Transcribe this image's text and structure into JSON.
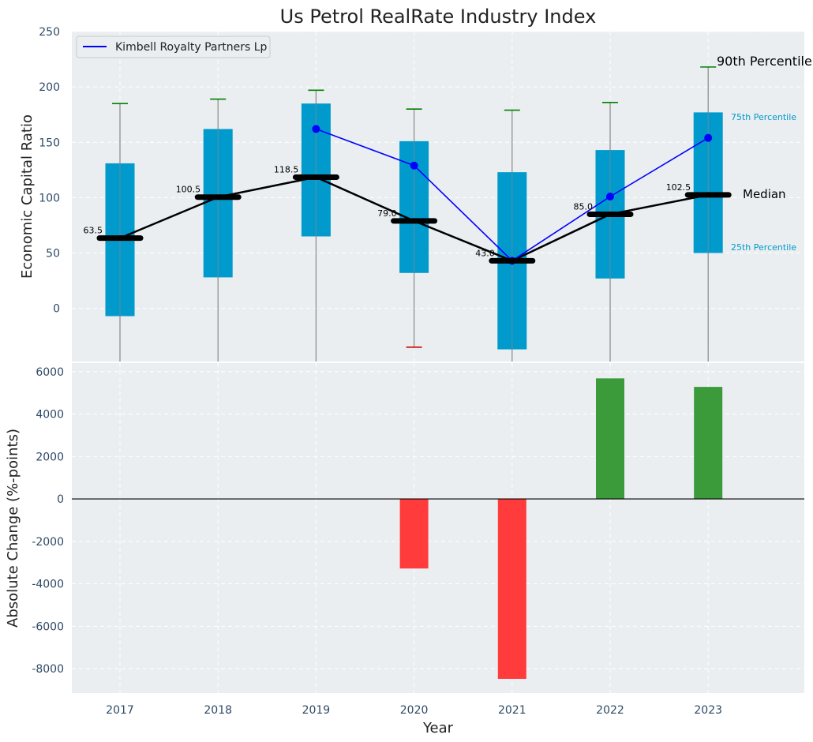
{
  "chart_data": [
    {
      "type": "box",
      "title": "Us Petrol RealRate Industry Index",
      "ylabel": "Economic Capital Ratio",
      "ylim": [
        -48,
        250
      ],
      "yticks": [
        0,
        50,
        100,
        150,
        200,
        250
      ],
      "categories": [
        "2017",
        "2018",
        "2019",
        "2020",
        "2021",
        "2022",
        "2023"
      ],
      "boxes": [
        {
          "year": "2017",
          "p10": -48,
          "p25": -7,
          "median": 63.5,
          "p75": 131,
          "p90": 185,
          "median_label": "63.5"
        },
        {
          "year": "2018",
          "p10": -48,
          "p25": 28,
          "median": 100.5,
          "p75": 162,
          "p90": 189,
          "median_label": "100.5"
        },
        {
          "year": "2019",
          "p10": -48,
          "p25": 65,
          "median": 118.5,
          "p75": 185,
          "p90": 197,
          "median_label": "118.5"
        },
        {
          "year": "2020",
          "p10": -35,
          "p25": 32,
          "median": 79.0,
          "p75": 151,
          "p90": 180,
          "median_label": "79.0"
        },
        {
          "year": "2021",
          "p10": -48,
          "p25": -37,
          "median": 43.0,
          "p75": 123,
          "p90": 179,
          "median_label": "43.0"
        },
        {
          "year": "2022",
          "p10": -48,
          "p25": 27,
          "median": 85.0,
          "p75": 143,
          "p90": 186,
          "median_label": "85.0"
        },
        {
          "year": "2023",
          "p10": -48,
          "p25": 50,
          "median": 102.5,
          "p75": 177,
          "p90": 218,
          "median_label": "102.5"
        }
      ],
      "series": [
        {
          "name": "Kimbell Royalty Partners Lp",
          "color": "#0000ff",
          "points": [
            {
              "x": "2019",
              "y": 162
            },
            {
              "x": "2020",
              "y": 129
            },
            {
              "x": "2021",
              "y": 43
            },
            {
              "x": "2022",
              "y": 101
            },
            {
              "x": "2023",
              "y": 154
            }
          ]
        }
      ],
      "legend": {
        "position": "top-left",
        "entries": [
          "Kimbell Royalty Partners Lp"
        ]
      },
      "annotations": {
        "p90": "90th Percentile",
        "p75": "75th Percentile",
        "median": "Median",
        "p25": "25th Percentile"
      },
      "grid": true
    },
    {
      "type": "bar",
      "xlabel": "Year",
      "ylabel": "Absolute Change (%-points)",
      "ylim": [
        -9150,
        6400
      ],
      "yticks": [
        -8000,
        -6000,
        -4000,
        -2000,
        0,
        2000,
        4000,
        6000
      ],
      "categories": [
        "2017",
        "2018",
        "2019",
        "2020",
        "2021",
        "2022",
        "2023"
      ],
      "values": [
        null,
        null,
        null,
        -3280,
        -8480,
        5680,
        5280
      ],
      "positive_color": "#3b9b3b",
      "negative_color": "#ff3b3b",
      "grid": true
    }
  ],
  "colors": {
    "plot_background": "#eaeef0",
    "box_fill": "#009acd",
    "median_color": "#000000",
    "whisker_cap_high": "#008000",
    "whisker_cap_low": "#cc0000",
    "annotation_75_25": "#009acd"
  }
}
